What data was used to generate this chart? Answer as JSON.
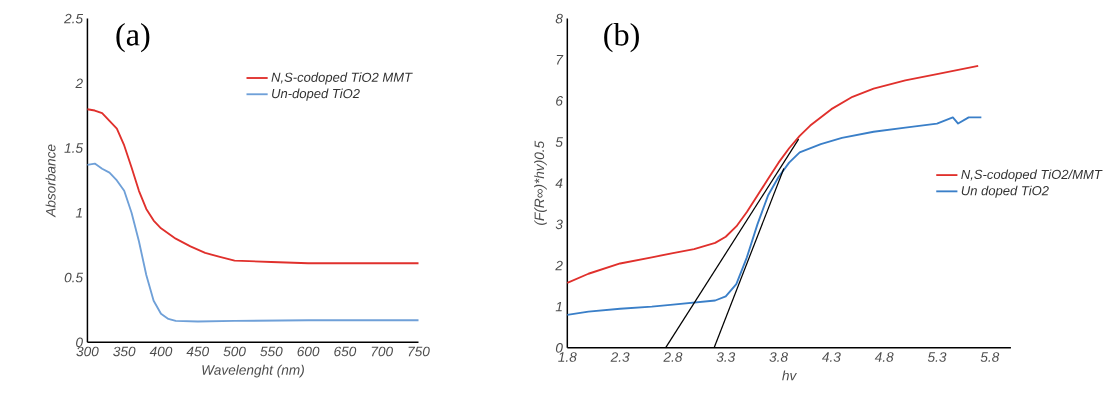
{
  "chart_data": [
    {
      "type": "line",
      "xlabel": "Wavelenght (nm)",
      "ylabel": "Absorbance",
      "annotations": [
        "(a)"
      ],
      "xlim": [
        300,
        750
      ],
      "ylim": [
        0,
        2.5
      ],
      "xticks": [
        300,
        350,
        400,
        450,
        500,
        550,
        600,
        650,
        700,
        750
      ],
      "yticks": [
        0,
        0.5,
        1,
        1.5,
        2,
        2.5
      ],
      "legend": "top right",
      "series": [
        {
          "name": "N,S-codoped TiO2 MMT",
          "color": "#e0302c",
          "x": [
            300,
            310,
            320,
            330,
            340,
            350,
            360,
            370,
            380,
            390,
            400,
            420,
            440,
            460,
            480,
            500,
            550,
            600,
            650,
            700,
            750
          ],
          "values": [
            1.8,
            1.79,
            1.77,
            1.71,
            1.65,
            1.52,
            1.35,
            1.17,
            1.03,
            0.94,
            0.88,
            0.8,
            0.74,
            0.69,
            0.66,
            0.63,
            0.62,
            0.61,
            0.61,
            0.61,
            0.61
          ]
        },
        {
          "name": "Un-doped TiO2",
          "color": "#6fa0d8",
          "x": [
            300,
            310,
            320,
            330,
            340,
            350,
            360,
            370,
            380,
            390,
            400,
            410,
            420,
            450,
            500,
            600,
            700,
            750
          ],
          "values": [
            1.37,
            1.38,
            1.34,
            1.31,
            1.25,
            1.17,
            1.0,
            0.78,
            0.52,
            0.32,
            0.22,
            0.18,
            0.165,
            0.16,
            0.165,
            0.17,
            0.17,
            0.17
          ]
        }
      ]
    },
    {
      "type": "line",
      "xlabel": "hv",
      "ylabel": "(F(R∞)*hv)0.5",
      "annotations": [
        "(b)"
      ],
      "xlim": [
        1.8,
        6.0
      ],
      "ylim": [
        0,
        8
      ],
      "xticks": [
        1.8,
        2.3,
        2.8,
        3.3,
        3.8,
        4.3,
        4.8,
        5.3,
        5.8
      ],
      "yticks": [
        0,
        1,
        2,
        3,
        4,
        5,
        6,
        7,
        8
      ],
      "legend": "right",
      "series": [
        {
          "name": "N,S-codoped TiO2/MMT",
          "color": "#e0302c",
          "x": [
            1.8,
            2.0,
            2.3,
            2.6,
            2.8,
            3.0,
            3.2,
            3.3,
            3.4,
            3.5,
            3.6,
            3.7,
            3.8,
            3.9,
            4.0,
            4.1,
            4.3,
            4.5,
            4.7,
            5.0,
            5.3,
            5.69
          ],
          "values": [
            1.58,
            1.8,
            2.05,
            2.2,
            2.3,
            2.4,
            2.55,
            2.7,
            2.95,
            3.3,
            3.7,
            4.1,
            4.5,
            4.85,
            5.15,
            5.4,
            5.8,
            6.1,
            6.3,
            6.5,
            6.65,
            6.85
          ]
        },
        {
          "name": "Un doped TiO2",
          "color": "#3a7fc8",
          "x": [
            1.8,
            2.0,
            2.3,
            2.6,
            2.8,
            3.0,
            3.2,
            3.3,
            3.4,
            3.5,
            3.6,
            3.7,
            3.8,
            3.9,
            4.0,
            4.2,
            4.4,
            4.7,
            5.0,
            5.3,
            5.45,
            5.5,
            5.6,
            5.72
          ],
          "values": [
            0.8,
            0.88,
            0.95,
            1.0,
            1.05,
            1.1,
            1.15,
            1.25,
            1.55,
            2.2,
            3.0,
            3.7,
            4.15,
            4.5,
            4.75,
            4.95,
            5.1,
            5.25,
            5.35,
            5.45,
            5.6,
            5.45,
            5.6,
            5.6
          ]
        },
        {
          "color": "#000000",
          "x": [
            2.73,
            3.99
          ],
          "values": [
            0,
            5.07
          ]
        },
        {
          "color": "#000000",
          "x": [
            3.19,
            3.85
          ],
          "values": [
            0,
            4.36
          ]
        }
      ]
    }
  ]
}
